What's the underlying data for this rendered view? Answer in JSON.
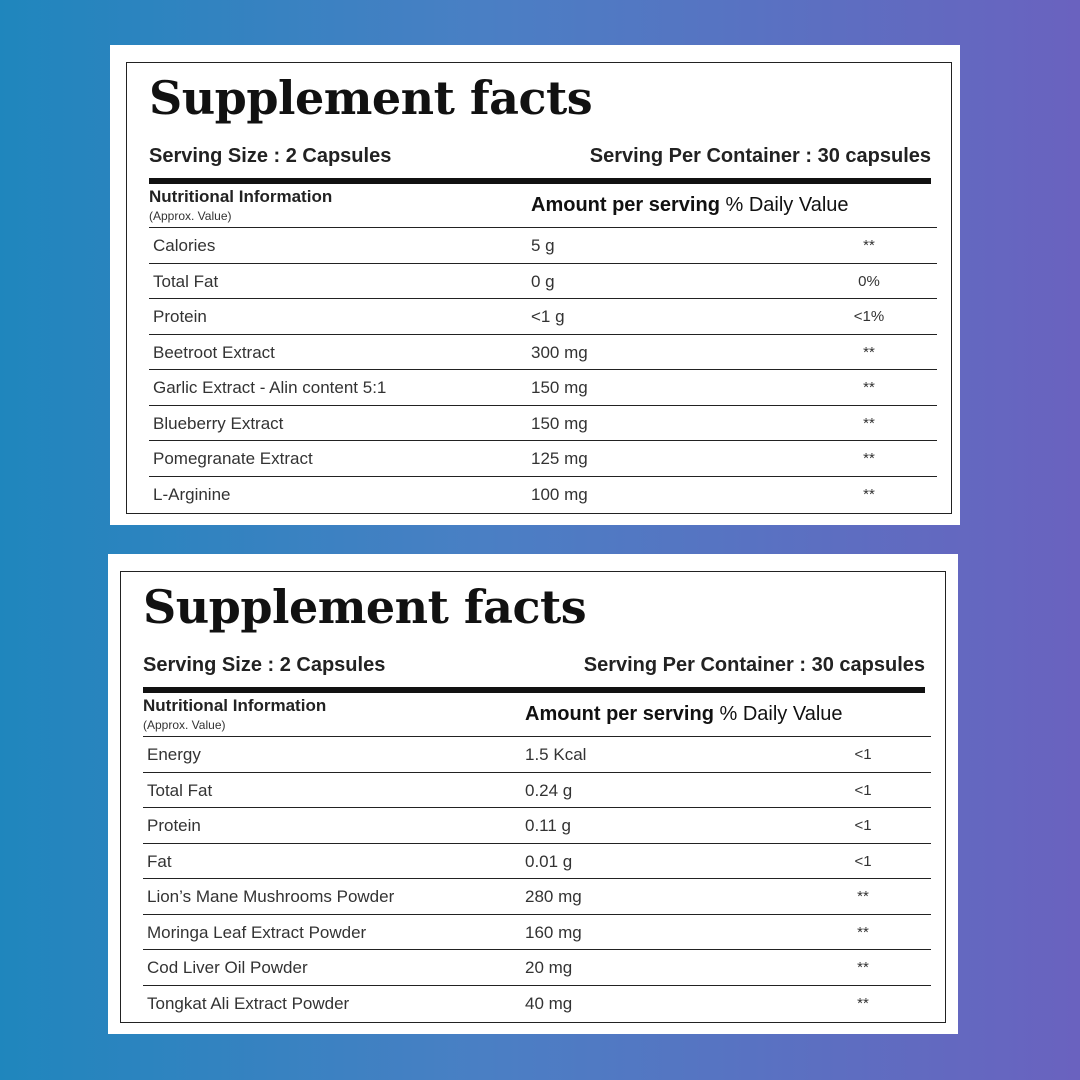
{
  "labels": [
    {
      "title": "Supplement facts",
      "serving_size": "Serving Size : 2 Capsules",
      "serving_per_container": "Serving Per Container : 30 capsules",
      "nutritional_information": "Nutritional Information",
      "approx_value": "(Approx. Value)",
      "amount_per_serving": "Amount per serving",
      "daily_value": "% Daily Value",
      "rows": [
        {
          "name": "Calories",
          "amount": "5 g",
          "dv": "**"
        },
        {
          "name": "Total Fat",
          "amount": "0 g",
          "dv": "0%"
        },
        {
          "name": "Protein",
          "amount": "<1 g",
          "dv": "<1%"
        },
        {
          "name": "Beetroot Extract",
          "amount": "300 mg",
          "dv": "**"
        },
        {
          "name": "Garlic Extract - Alin content 5:1",
          "amount": "150 mg",
          "dv": "**"
        },
        {
          "name": "Blueberry Extract",
          "amount": "150 mg",
          "dv": "**"
        },
        {
          "name": "Pomegranate Extract",
          "amount": "125 mg",
          "dv": "**"
        },
        {
          "name": "L-Arginine",
          "amount": "100 mg",
          "dv": "**"
        }
      ]
    },
    {
      "title": "Supplement facts",
      "serving_size": "Serving Size : 2 Capsules",
      "serving_per_container": "Serving Per Container : 30 capsules",
      "nutritional_information": "Nutritional Information",
      "approx_value": "(Approx. Value)",
      "amount_per_serving": "Amount per serving",
      "daily_value": "% Daily Value",
      "rows": [
        {
          "name": "Energy",
          "amount": "1.5 Kcal",
          "dv": "<1"
        },
        {
          "name": "Total Fat",
          "amount": "0.24 g",
          "dv": "<1"
        },
        {
          "name": "Protein",
          "amount": "0.11 g",
          "dv": "<1"
        },
        {
          "name": "Fat",
          "amount": "0.01 g",
          "dv": "<1"
        },
        {
          "name": "Lion’s Mane Mushrooms Powder",
          "amount": "280 mg",
          "dv": "**"
        },
        {
          "name": "Moringa Leaf Extract Powder",
          "amount": "160 mg",
          "dv": "**"
        },
        {
          "name": "Cod Liver Oil Powder",
          "amount": "20 mg",
          "dv": "**"
        },
        {
          "name": "Tongkat Ali Extract Powder",
          "amount": "40 mg",
          "dv": "**"
        }
      ]
    }
  ]
}
